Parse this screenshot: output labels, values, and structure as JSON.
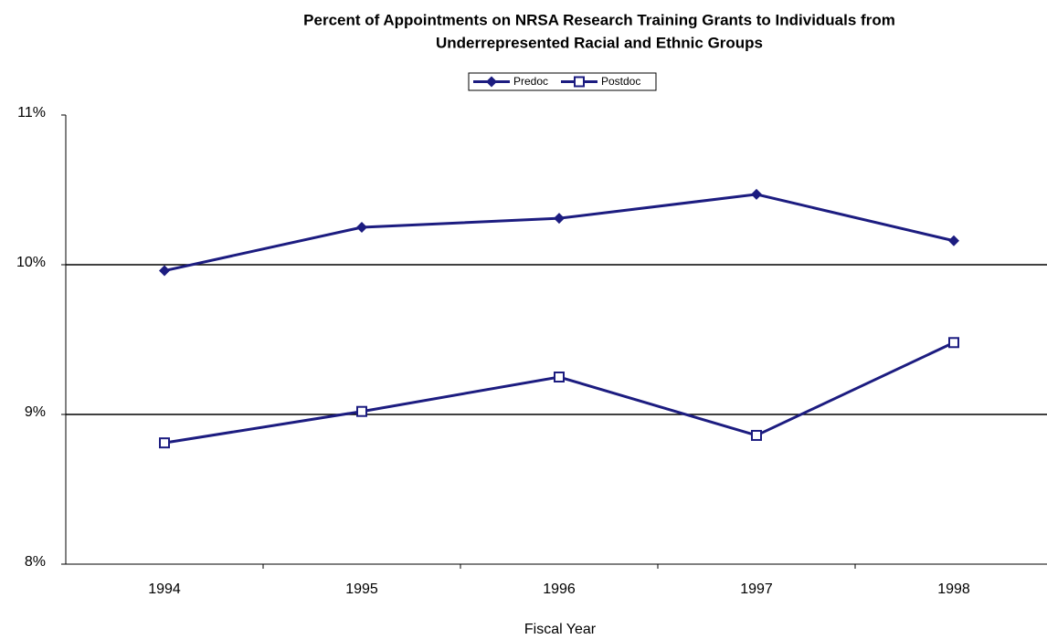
{
  "chart_data": {
    "type": "line",
    "title": [
      "Percent of Appointments on NRSA Research Training Grants to Individuals from",
      "Underrepresented Racial and Ethnic Groups"
    ],
    "x_label": "Fiscal Year",
    "categories": [
      "1994",
      "1995",
      "1996",
      "1997",
      "1998"
    ],
    "series": [
      {
        "name": "Predoc",
        "color": "#1c1c80",
        "marker": "diamond",
        "values": [
          9.96,
          10.25,
          10.31,
          10.47,
          10.16
        ]
      },
      {
        "name": "Postdoc",
        "color": "#1c1c80",
        "marker": "square",
        "values": [
          8.81,
          9.02,
          9.25,
          8.86,
          9.48
        ]
      }
    ],
    "ylim": [
      8,
      11
    ],
    "yticks": [
      {
        "value": 8,
        "label": "8%"
      },
      {
        "value": 9,
        "label": "9%"
      },
      {
        "value": 10,
        "label": "10%"
      },
      {
        "value": 11,
        "label": "11%"
      }
    ],
    "grid": true,
    "legend": "top"
  }
}
